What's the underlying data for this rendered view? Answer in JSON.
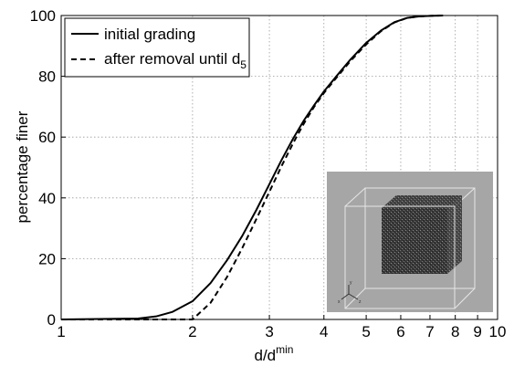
{
  "chart_data": {
    "type": "line",
    "xlabel": "d/d",
    "xlabel_sup": "min",
    "ylabel": "percentage finer",
    "x_scale": "log",
    "xlim": [
      1,
      10
    ],
    "ylim": [
      0,
      100
    ],
    "grid": true,
    "legend_position": "top-left",
    "x_ticks": [
      1,
      2,
      3,
      4,
      5,
      6,
      7,
      8,
      9,
      10
    ],
    "x_tick_labels": [
      "1",
      "2",
      "3",
      "4",
      "5",
      "6",
      "7",
      "8",
      "9",
      "10"
    ],
    "y_ticks": [
      0,
      20,
      40,
      60,
      80,
      100
    ],
    "y_tick_labels": [
      "0",
      "20",
      "40",
      "60",
      "80",
      "100"
    ],
    "series": [
      {
        "name": "initial grading",
        "style": "solid",
        "color": "#000000",
        "x": [
          1.0,
          1.5,
          1.65,
          1.8,
          2.0,
          2.2,
          2.4,
          2.6,
          2.8,
          3.0,
          3.2,
          3.4,
          3.6,
          3.8,
          4.0,
          4.3,
          4.6,
          5.0,
          5.4,
          5.8,
          6.2,
          6.6,
          7.0,
          7.5
        ],
        "y": [
          0,
          0.3,
          1.0,
          2.5,
          6.0,
          12.0,
          19.5,
          27.5,
          36.0,
          44.5,
          52.5,
          59.5,
          65.5,
          70.5,
          75.0,
          80.5,
          85.5,
          91.0,
          95.0,
          97.8,
          99.2,
          99.7,
          99.9,
          100
        ]
      },
      {
        "name": "after removal until d",
        "name_sub": "5",
        "style": "dashed",
        "color": "#000000",
        "x": [
          1.0,
          1.7,
          1.9,
          2.0,
          2.2,
          2.4,
          2.6,
          2.8,
          3.0,
          3.2,
          3.4,
          3.6,
          3.8,
          4.0,
          4.3,
          4.6,
          5.0,
          5.4,
          5.8,
          6.2,
          6.6,
          7.0,
          7.5
        ],
        "y": [
          0,
          0,
          0,
          0,
          5.5,
          14.0,
          23.5,
          33.0,
          42.0,
          50.5,
          58.0,
          64.5,
          70.0,
          74.5,
          80.0,
          85.0,
          90.5,
          94.8,
          97.7,
          99.2,
          99.7,
          99.9,
          100
        ]
      }
    ]
  },
  "inset": {
    "background_color": "#a6a6a6",
    "cube_color": "#3a3a3a",
    "frame_color": "#e6e6e6",
    "axis_labels": [
      "x",
      "y",
      "z"
    ]
  }
}
